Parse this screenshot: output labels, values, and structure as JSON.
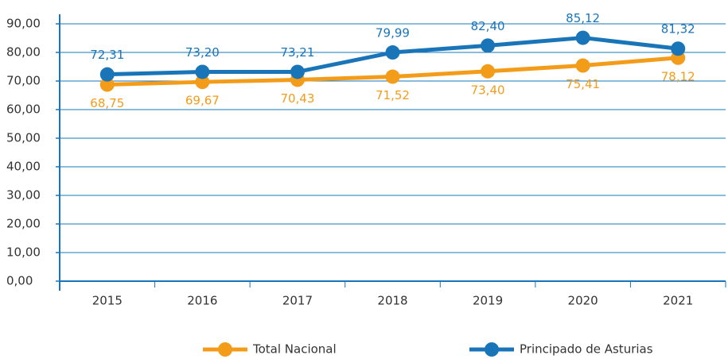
{
  "chart_data": {
    "type": "line",
    "categories": [
      "2015",
      "2016",
      "2017",
      "2018",
      "2019",
      "2020",
      "2021"
    ],
    "series": [
      {
        "name": "Total Nacional",
        "color": "#f39c1a",
        "values": [
          68.75,
          69.67,
          70.43,
          71.52,
          73.4,
          75.41,
          78.12
        ],
        "value_labels": [
          "68,75",
          "69,67",
          "70,43",
          "71,52",
          "73,40",
          "75,41",
          "78,12"
        ]
      },
      {
        "name": "Principado de Asturias",
        "color": "#1a75b8",
        "values": [
          72.31,
          73.2,
          73.21,
          79.99,
          82.4,
          85.12,
          81.32
        ],
        "value_labels": [
          "72,31",
          "73,20",
          "73,21",
          "79,99",
          "82,40",
          "85,12",
          "81,32"
        ]
      }
    ],
    "ylim": [
      0,
      90
    ],
    "yticks": [
      {
        "value": 0,
        "label": "0,00"
      },
      {
        "value": 10,
        "label": "10,00"
      },
      {
        "value": 20,
        "label": "20,00"
      },
      {
        "value": 30,
        "label": "30,00"
      },
      {
        "value": 40,
        "label": "40,00"
      },
      {
        "value": 50,
        "label": "50,00"
      },
      {
        "value": 60,
        "label": "60,00"
      },
      {
        "value": 70,
        "label": "70,00"
      },
      {
        "value": 80,
        "label": "80,00"
      },
      {
        "value": 90,
        "label": "90,00"
      }
    ],
    "grid": true,
    "legend": "bottom",
    "axis_color": "#1a75b8"
  }
}
